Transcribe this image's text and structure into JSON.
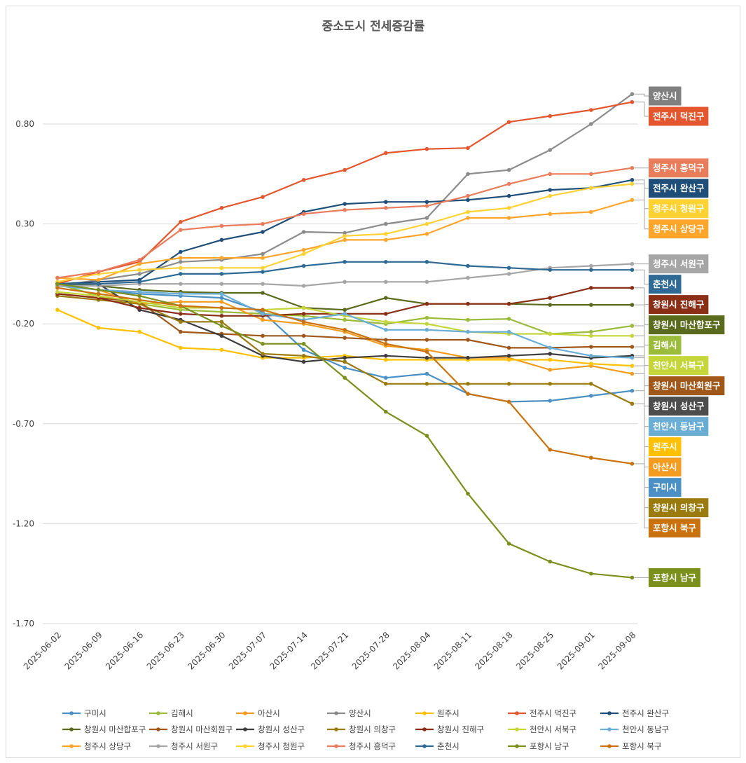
{
  "chart_data": {
    "type": "line",
    "title": "중소도시 전세증감률",
    "xlabel": "",
    "ylabel": "",
    "ylim": [
      -1.7,
      1.05
    ],
    "yticks": [
      0.8,
      0.3,
      -0.2,
      -0.7,
      -1.2,
      -1.7
    ],
    "ytick_labels": [
      "0.80",
      "0.30",
      "-0.20",
      "-0.70",
      "-1.20",
      "-1.70"
    ],
    "categories": [
      "2025-06-02",
      "2025-06-09",
      "2025-06-16",
      "2025-06-23",
      "2025-06-30",
      "2025-07-07",
      "2025-07-14",
      "2025-07-21",
      "2025-07-28",
      "2025-08-04",
      "2025-08-11",
      "2025-08-18",
      "2025-08-25",
      "2025-09-01",
      "2025-09-08"
    ],
    "legend_position": "bottom",
    "series": [
      {
        "name": "구미시",
        "color": "#4a90c4",
        "values": [
          0.0,
          -0.03,
          -0.05,
          -0.06,
          -0.07,
          -0.14,
          -0.33,
          -0.42,
          -0.47,
          -0.45,
          -0.55,
          -0.59,
          -0.585,
          -0.56,
          -0.535
        ]
      },
      {
        "name": "김해시",
        "color": "#9bbb3b",
        "values": [
          0.0,
          -0.06,
          -0.1,
          -0.13,
          -0.14,
          -0.15,
          -0.16,
          -0.18,
          -0.2,
          -0.17,
          -0.18,
          -0.175,
          -0.25,
          -0.24,
          -0.21
        ]
      },
      {
        "name": "아산시",
        "color": "#f39c1f",
        "values": [
          0.0,
          -0.03,
          -0.1,
          -0.09,
          -0.09,
          -0.18,
          -0.2,
          -0.24,
          -0.31,
          -0.33,
          -0.37,
          -0.37,
          -0.43,
          -0.41,
          -0.45
        ]
      },
      {
        "name": "양산시",
        "color": "#8c8c8c",
        "values": [
          -0.01,
          0.02,
          0.05,
          0.11,
          0.12,
          0.15,
          0.26,
          0.255,
          0.3,
          0.33,
          0.55,
          0.57,
          0.67,
          0.8,
          0.95
        ]
      },
      {
        "name": "원주시",
        "color": "#ffc000",
        "values": [
          -0.13,
          -0.22,
          -0.24,
          -0.32,
          -0.33,
          -0.37,
          -0.37,
          -0.36,
          -0.38,
          -0.38,
          -0.38,
          -0.38,
          -0.38,
          -0.4,
          -0.41
        ]
      },
      {
        "name": "전주시 덕진구",
        "color": "#e4572e",
        "values": [
          0.0,
          0.06,
          0.11,
          0.31,
          0.38,
          0.435,
          0.52,
          0.57,
          0.655,
          0.675,
          0.68,
          0.81,
          0.84,
          0.87,
          0.91
        ]
      },
      {
        "name": "전주시 완산구",
        "color": "#1f4e79",
        "values": [
          0.0,
          0.01,
          0.02,
          0.16,
          0.22,
          0.26,
          0.36,
          0.4,
          0.41,
          0.41,
          0.42,
          0.44,
          0.47,
          0.48,
          0.52
        ]
      },
      {
        "name": "창원시 마산합포구",
        "color": "#5b6b1e",
        "values": [
          0.0,
          -0.01,
          -0.03,
          -0.04,
          -0.045,
          -0.045,
          -0.12,
          -0.13,
          -0.07,
          -0.1,
          -0.1,
          -0.1,
          -0.105,
          -0.105,
          -0.105
        ]
      },
      {
        "name": "창원시 마산회원구",
        "color": "#a0581a",
        "values": [
          -0.05,
          -0.07,
          -0.09,
          -0.24,
          -0.25,
          -0.26,
          -0.26,
          -0.27,
          -0.28,
          -0.28,
          -0.28,
          -0.32,
          -0.32,
          -0.315,
          -0.315
        ]
      },
      {
        "name": "창원시 성산구",
        "color": "#3d3d3d",
        "values": [
          0.0,
          0.0,
          -0.13,
          -0.18,
          -0.26,
          -0.36,
          -0.39,
          -0.37,
          -0.36,
          -0.37,
          -0.37,
          -0.36,
          -0.35,
          -0.37,
          -0.36
        ]
      },
      {
        "name": "창원시 의창구",
        "color": "#9b7a0e",
        "values": [
          -0.06,
          -0.08,
          -0.1,
          -0.19,
          -0.19,
          -0.35,
          -0.36,
          -0.39,
          -0.5,
          -0.5,
          -0.5,
          -0.5,
          -0.5,
          -0.5,
          -0.6
        ]
      },
      {
        "name": "창원시 진해구",
        "color": "#8b2e16",
        "values": [
          -0.05,
          -0.07,
          -0.12,
          -0.15,
          -0.16,
          -0.16,
          -0.15,
          -0.15,
          -0.15,
          -0.1,
          -0.1,
          -0.1,
          -0.07,
          -0.02,
          -0.02
        ]
      },
      {
        "name": "천안시 서북구",
        "color": "#c4d63a",
        "values": [
          -0.04,
          -0.06,
          -0.09,
          -0.12,
          -0.12,
          -0.13,
          -0.12,
          -0.16,
          -0.19,
          -0.2,
          -0.24,
          -0.25,
          -0.25,
          -0.26,
          -0.26
        ]
      },
      {
        "name": "천안시 동남구",
        "color": "#6aaed6",
        "values": [
          -0.01,
          -0.03,
          -0.04,
          -0.05,
          -0.05,
          -0.15,
          -0.18,
          -0.15,
          -0.23,
          -0.23,
          -0.24,
          -0.24,
          -0.32,
          -0.36,
          -0.37
        ]
      },
      {
        "name": "청주시 상당구",
        "color": "#ffa52b",
        "values": [
          0.03,
          0.02,
          0.1,
          0.13,
          0.13,
          0.13,
          0.17,
          0.22,
          0.22,
          0.25,
          0.33,
          0.33,
          0.35,
          0.36,
          0.42
        ]
      },
      {
        "name": "청주시 서원구",
        "color": "#a6a6a6",
        "values": [
          -0.01,
          -0.01,
          0.0,
          0.0,
          0.0,
          0.0,
          -0.01,
          0.01,
          0.01,
          0.01,
          0.03,
          0.05,
          0.08,
          0.09,
          0.1
        ]
      },
      {
        "name": "청주시 청원구",
        "color": "#ffd234",
        "values": [
          0.01,
          0.05,
          0.07,
          0.08,
          0.08,
          0.08,
          0.15,
          0.24,
          0.25,
          0.3,
          0.36,
          0.38,
          0.44,
          0.48,
          0.5
        ]
      },
      {
        "name": "청주시 흥덕구",
        "color": "#e97c5a",
        "values": [
          0.03,
          0.06,
          0.12,
          0.27,
          0.29,
          0.3,
          0.35,
          0.37,
          0.38,
          0.39,
          0.44,
          0.5,
          0.55,
          0.55,
          0.58
        ]
      },
      {
        "name": "춘천시",
        "color": "#2e6a94",
        "values": [
          0.0,
          0.0,
          0.01,
          0.05,
          0.05,
          0.06,
          0.09,
          0.11,
          0.11,
          0.11,
          0.09,
          0.08,
          0.07,
          0.07,
          0.07
        ]
      },
      {
        "name": "포항시 남구",
        "color": "#7a8f1c",
        "values": [
          0.0,
          -0.03,
          -0.06,
          -0.11,
          -0.21,
          -0.3,
          -0.3,
          -0.47,
          -0.64,
          -0.76,
          -1.05,
          -1.3,
          -1.39,
          -1.45,
          -1.47
        ]
      },
      {
        "name": "포항시 북구",
        "color": "#c9720e",
        "values": [
          -0.02,
          -0.05,
          -0.08,
          -0.11,
          -0.12,
          -0.13,
          -0.19,
          -0.23,
          -0.3,
          -0.34,
          -0.55,
          -0.59,
          -0.83,
          -0.87,
          -0.9
        ]
      }
    ],
    "callouts": [
      {
        "label": "양산시",
        "series": "양산시",
        "bg": "#808080"
      },
      {
        "label": "전주시 덕진구",
        "series": "전주시 덕진구",
        "bg": "#e4572e"
      },
      {
        "label": "청주시 흥덕구",
        "series": "청주시 흥덕구",
        "bg": "#e97c5a"
      },
      {
        "label": "전주시 완산구",
        "series": "전주시 완산구",
        "bg": "#1f4e79"
      },
      {
        "label": "청주시 청원구",
        "series": "청주시 청원구",
        "bg": "#ffd234"
      },
      {
        "label": "청주시 상당구",
        "series": "청주시 상당구",
        "bg": "#ffa52b"
      },
      {
        "label": "청주시 서원구",
        "series": "청주시 서원구",
        "bg": "#a6a6a6"
      },
      {
        "label": "춘천시",
        "series": "춘천시",
        "bg": "#2e6a94"
      },
      {
        "label": "창원시 진해구",
        "series": "창원시 진해구",
        "bg": "#8b2e16"
      },
      {
        "label": "창원시 마산합포구",
        "series": "창원시 마산합포구",
        "bg": "#5b6b1e"
      },
      {
        "label": "김해시",
        "series": "김해시",
        "bg": "#9bbb3b"
      },
      {
        "label": "천안시 서북구",
        "series": "천안시 서북구",
        "bg": "#c4d63a"
      },
      {
        "label": "창원시 마산회원구",
        "series": "창원시 마산회원구",
        "bg": "#a0581a"
      },
      {
        "label": "창원시 성산구",
        "series": "창원시 성산구",
        "bg": "#4d4d4d"
      },
      {
        "label": "천안시 동남구",
        "series": "천안시 동남구",
        "bg": "#6aaed6"
      },
      {
        "label": "원주시",
        "series": "원주시",
        "bg": "#ffc000"
      },
      {
        "label": "아산시",
        "series": "아산시",
        "bg": "#f39c1f"
      },
      {
        "label": "구미시",
        "series": "구미시",
        "bg": "#4a90c4"
      },
      {
        "label": "창원시 의창구",
        "series": "창원시 의창구",
        "bg": "#9b7a0e"
      },
      {
        "label": "포항시 북구",
        "series": "포항시 북구",
        "bg": "#c9720e"
      },
      {
        "label": "포항시 남구",
        "series": "포항시 남구",
        "bg": "#7a8f1c"
      }
    ]
  }
}
